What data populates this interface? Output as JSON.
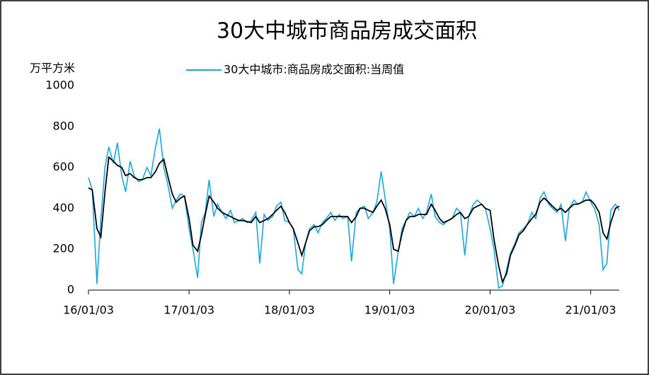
{
  "chart_data": {
    "type": "line",
    "title": "30大中城市商品房成交面积",
    "y_axis_label": "万平方米",
    "x": [
      "16/01/03",
      "16/01/17",
      "16/02/03",
      "16/02/17",
      "16/03/03",
      "16/03/17",
      "16/04/03",
      "16/04/17",
      "16/05/03",
      "16/05/17",
      "16/06/03",
      "16/06/17",
      "16/07/03",
      "16/07/17",
      "16/08/03",
      "16/08/17",
      "16/09/03",
      "16/09/17",
      "16/10/03",
      "16/10/17",
      "16/11/03",
      "16/11/17",
      "16/12/03",
      "16/12/17",
      "17/01/03",
      "17/01/17",
      "17/02/03",
      "17/02/17",
      "17/03/03",
      "17/03/17",
      "17/04/03",
      "17/04/17",
      "17/05/03",
      "17/05/17",
      "17/06/03",
      "17/06/17",
      "17/07/03",
      "17/07/17",
      "17/08/03",
      "17/08/17",
      "17/09/03",
      "17/09/17",
      "17/10/03",
      "17/10/17",
      "17/11/03",
      "17/11/17",
      "17/12/03",
      "17/12/17",
      "18/01/03",
      "18/01/17",
      "18/02/03",
      "18/02/17",
      "18/03/03",
      "18/03/17",
      "18/04/03",
      "18/04/17",
      "18/05/03",
      "18/05/17",
      "18/06/03",
      "18/06/17",
      "18/07/03",
      "18/07/17",
      "18/08/03",
      "18/08/17",
      "18/09/03",
      "18/09/17",
      "18/10/03",
      "18/10/17",
      "18/11/03",
      "18/11/17",
      "18/12/03",
      "18/12/17",
      "19/01/03",
      "19/01/17",
      "19/02/03",
      "19/02/17",
      "19/03/03",
      "19/03/17",
      "19/04/03",
      "19/04/17",
      "19/05/03",
      "19/05/17",
      "19/06/03",
      "19/06/17",
      "19/07/03",
      "19/07/17",
      "19/08/03",
      "19/08/17",
      "19/09/03",
      "19/09/17",
      "19/10/03",
      "19/10/17",
      "19/11/03",
      "19/11/17",
      "19/12/03",
      "19/12/17",
      "20/01/03",
      "20/01/17",
      "20/02/03",
      "20/02/17",
      "20/03/03",
      "20/03/17",
      "20/04/03",
      "20/04/17",
      "20/05/03",
      "20/05/17",
      "20/06/03",
      "20/06/17",
      "20/07/03",
      "20/07/17",
      "20/08/03",
      "20/08/17",
      "20/09/03",
      "20/09/17",
      "20/10/03",
      "20/10/17",
      "20/11/03",
      "20/11/17",
      "20/12/03",
      "20/12/17",
      "21/01/03",
      "21/01/17",
      "21/02/03",
      "21/02/17",
      "21/03/03",
      "21/03/17",
      "21/04/03",
      "21/04/17"
    ],
    "series": [
      {
        "name": "30大中城市:商品房成交面积:当周值",
        "color": "#1aa7e0",
        "values": [
          550,
          490,
          30,
          350,
          600,
          700,
          620,
          720,
          560,
          480,
          630,
          560,
          530,
          540,
          600,
          560,
          700,
          790,
          600,
          520,
          400,
          440,
          470,
          460,
          300,
          200,
          60,
          330,
          380,
          540,
          360,
          420,
          380,
          350,
          390,
          330,
          340,
          350,
          330,
          340,
          380,
          130,
          370,
          340,
          360,
          410,
          430,
          340,
          330,
          300,
          100,
          80,
          230,
          300,
          320,
          280,
          330,
          350,
          380,
          340,
          370,
          350,
          360,
          140,
          380,
          400,
          410,
          350,
          380,
          430,
          580,
          450,
          300,
          30,
          190,
          300,
          340,
          380,
          360,
          400,
          350,
          380,
          470,
          360,
          330,
          320,
          340,
          350,
          400,
          380,
          170,
          360,
          420,
          440,
          420,
          400,
          300,
          200,
          10,
          20,
          100,
          180,
          230,
          280,
          300,
          320,
          380,
          350,
          450,
          480,
          420,
          400,
          380,
          420,
          240,
          400,
          440,
          420,
          430,
          480,
          430,
          400,
          320,
          100,
          130,
          390,
          420,
          390
        ]
      },
      {
        "color": "#000000",
        "values": [
          500,
          490,
          300,
          260,
          480,
          650,
          630,
          610,
          600,
          560,
          570,
          550,
          540,
          540,
          550,
          550,
          580,
          620,
          640,
          560,
          470,
          430,
          450,
          460,
          350,
          220,
          190,
          270,
          370,
          460,
          430,
          400,
          380,
          370,
          360,
          350,
          340,
          340,
          335,
          330,
          360,
          330,
          340,
          350,
          370,
          390,
          410,
          380,
          330,
          300,
          230,
          170,
          230,
          290,
          310,
          310,
          320,
          340,
          360,
          360,
          360,
          360,
          360,
          330,
          360,
          400,
          400,
          390,
          380,
          410,
          440,
          400,
          320,
          200,
          190,
          280,
          340,
          360,
          360,
          370,
          370,
          370,
          420,
          390,
          350,
          330,
          340,
          350,
          370,
          380,
          350,
          360,
          400,
          410,
          420,
          400,
          390,
          250,
          120,
          40,
          80,
          170,
          220,
          270,
          290,
          320,
          350,
          370,
          430,
          450,
          430,
          410,
          390,
          400,
          380,
          400,
          420,
          420,
          430,
          440,
          440,
          420,
          380,
          280,
          250,
          330,
          400,
          410
        ]
      }
    ],
    "xlim": [
      "16/01/03",
      "21/04/17"
    ],
    "xticks": [
      "16/01/03",
      "17/01/03",
      "18/01/03",
      "19/01/03",
      "20/01/03",
      "21/01/03"
    ],
    "ylim": [
      0,
      1000
    ],
    "yticks": [
      0,
      200,
      400,
      600,
      800,
      1000
    ]
  }
}
